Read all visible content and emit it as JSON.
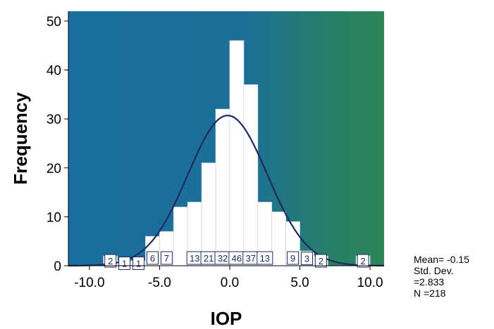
{
  "chart_data": {
    "type": "bar",
    "subtype": "histogram",
    "xlabel": "IOP",
    "ylabel": "Frequency",
    "xlim": [
      -11.5,
      11.0
    ],
    "ylim": [
      0,
      52
    ],
    "x_ticks": [
      -10.0,
      -5.0,
      0.0,
      5.0,
      10.0
    ],
    "x_tick_labels": [
      "-10.0",
      "-5.0",
      "0.0",
      "5.0",
      "10.0"
    ],
    "y_ticks": [
      0,
      10,
      20,
      30,
      40,
      50
    ],
    "y_tick_labels": [
      "0",
      "10",
      "20",
      "30",
      "40",
      "50"
    ],
    "bin_width": 1.0,
    "bins": [
      {
        "center": -8.5,
        "count": 2,
        "label": "2"
      },
      {
        "center": -7.5,
        "count": 1,
        "label": "1"
      },
      {
        "center": -6.5,
        "count": 1,
        "label": "1"
      },
      {
        "center": -5.5,
        "count": 6,
        "label": "6"
      },
      {
        "center": -4.5,
        "count": 7,
        "label": "7"
      },
      {
        "center": -3.5,
        "count": 12,
        "label": ""
      },
      {
        "center": -2.5,
        "count": 13,
        "label": "13"
      },
      {
        "center": -1.5,
        "count": 21,
        "label": "21"
      },
      {
        "center": -0.5,
        "count": 32,
        "label": "32"
      },
      {
        "center": 0.5,
        "count": 46,
        "label": "46"
      },
      {
        "center": 1.5,
        "count": 37,
        "label": "37"
      },
      {
        "center": 2.5,
        "count": 13,
        "label": "13"
      },
      {
        "center": 3.5,
        "count": 11,
        "label": ""
      },
      {
        "center": 4.5,
        "count": 9,
        "label": "9"
      },
      {
        "center": 5.5,
        "count": 3,
        "label": "3"
      },
      {
        "center": 6.5,
        "count": 2,
        "label": "2"
      },
      {
        "center": 9.5,
        "count": 2,
        "label": "2"
      }
    ],
    "normal_curve": {
      "mean": -0.15,
      "std_dev": 2.833,
      "n": 218
    },
    "colors": {
      "background_left": "#1a6e9e",
      "background_right": "#2c8656",
      "bar_fill": "#ffffff",
      "curve": "#1f2a5e",
      "label_text": "#1f2a5e"
    }
  },
  "stats": {
    "mean": "Mean= -0.15",
    "std_dev_label": "Std. Dev.",
    "std_dev_value": "=2.833",
    "n": "N =218"
  }
}
